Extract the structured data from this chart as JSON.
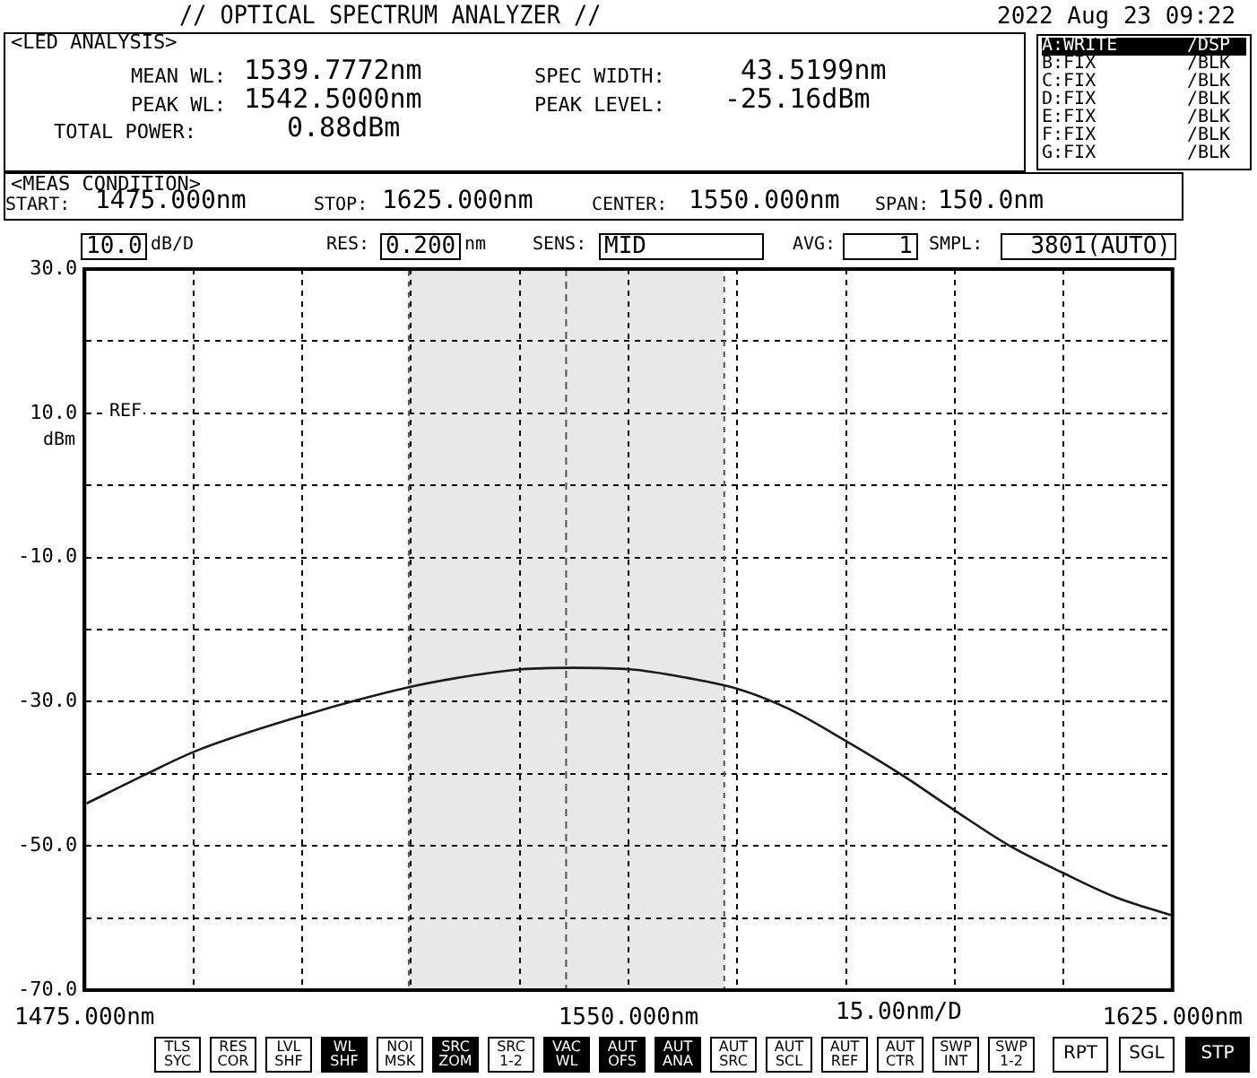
{
  "chart_data": {
    "type": "line",
    "title": "// OPTICAL SPECTRUM ANALYZER //",
    "x": [
      1475.3,
      1483.4,
      1490.2,
      1505.2,
      1519.7,
      1527.6,
      1535.2,
      1542.4,
      1550.2,
      1558.1,
      1565,
      1571.9,
      1579.9,
      1587.6,
      1595,
      1602.4,
      1610,
      1617.1,
      1624.8
    ],
    "series": [
      {
        "color": "#1a1a1a",
        "values": [
          -44.1,
          -40.1,
          -36.9,
          -31.9,
          -28.0,
          -26.5,
          -25.5,
          -25.3,
          -25.5,
          -26.7,
          -28.2,
          -30.9,
          -35.4,
          -40.1,
          -45.1,
          -49.9,
          -53.8,
          -57.1,
          -59.6
        ]
      }
    ],
    "xlim": [
      1475,
      1625
    ],
    "ylim": [
      -70,
      30
    ],
    "xticks": [
      {
        "value": 1475,
        "label": "1475.000nm"
      },
      {
        "value": 1490,
        "label": null
      },
      {
        "value": 1505,
        "label": null
      },
      {
        "value": 1520,
        "label": null
      },
      {
        "value": 1535,
        "label": null
      },
      {
        "value": 1550,
        "label": "1550.000nm"
      },
      {
        "value": 1565,
        "label": null
      },
      {
        "value": 1580,
        "label": null
      },
      {
        "value": 1595,
        "label": null
      },
      {
        "value": 1610,
        "label": null
      },
      {
        "value": 1625,
        "label": "1625.000nm"
      }
    ],
    "yticks": [
      {
        "value": 30,
        "label": "30.0"
      },
      {
        "value": 20,
        "label": null
      },
      {
        "value": 10,
        "label": "10.0"
      },
      {
        "value": 0,
        "label": null
      },
      {
        "value": -10,
        "label": "-10.0"
      },
      {
        "value": -20,
        "label": null
      },
      {
        "value": -30,
        "label": "-30.0"
      },
      {
        "value": -40,
        "label": null
      },
      {
        "value": -50,
        "label": "-50.0"
      },
      {
        "value": -60,
        "label": null
      },
      {
        "value": -70,
        "label": "-70.0"
      }
    ],
    "grid": true,
    "legend": false,
    "marker": "none",
    "line_style": "solid",
    "bands": [
      {
        "axis": "x",
        "from": 1519.7,
        "to": 1563.2,
        "color": "#555555"
      }
    ],
    "ref_lines": [
      {
        "axis": "x",
        "value": 1541.4,
        "color": "#555555",
        "line_style": "dashed"
      }
    ],
    "annotations": [
      "2022 Aug 23 09:22",
      "<LED ANALYSIS>",
      "MEAN WL:",
      "1539.7772nm",
      "PEAK WL:",
      "1542.5000nm",
      "TOTAL POWER:",
      "0.88dBm",
      "SPEC WIDTH:",
      "43.5199nm",
      "PEAK LEVEL:",
      "-25.16dBm",
      "A:WRITE",
      "/DSP",
      "B:FIX",
      "/BLK",
      "C:FIX",
      "/BLK",
      "D:FIX",
      "/BLK",
      "E:FIX",
      "/BLK",
      "F:FIX",
      "/BLK",
      "G:FIX",
      "/BLK",
      "<MEAS CONDITION>",
      "START:",
      "1475.000nm",
      "STOP:",
      "1625.000nm",
      "CENTER:",
      "1550.000nm",
      "SPAN:",
      "150.0nm",
      "10.0",
      "dB/D",
      "RES:",
      "0.200",
      "nm",
      "SENS:",
      "MID",
      "AVG:",
      "1",
      "SMPL:",
      "3801(AUTO)",
      "REF",
      "dBm",
      "15.00nm/D",
      "TLS\nSYC",
      "RES\nCOR",
      "LVL\nSHF",
      "WL\nSHF",
      "NOI\nMSK",
      "SRC\nZOM",
      "SRC\n1-2",
      "VAC\nWL",
      "AUT\nOFS",
      "AUT\nANA",
      "AUT\nSRC",
      "AUT\nSCL",
      "AUT\nREF",
      "AUT\nCTR",
      "SWP\nINT",
      "SWP\n1-2",
      "RPT",
      "SGL",
      "STP"
    ]
  }
}
